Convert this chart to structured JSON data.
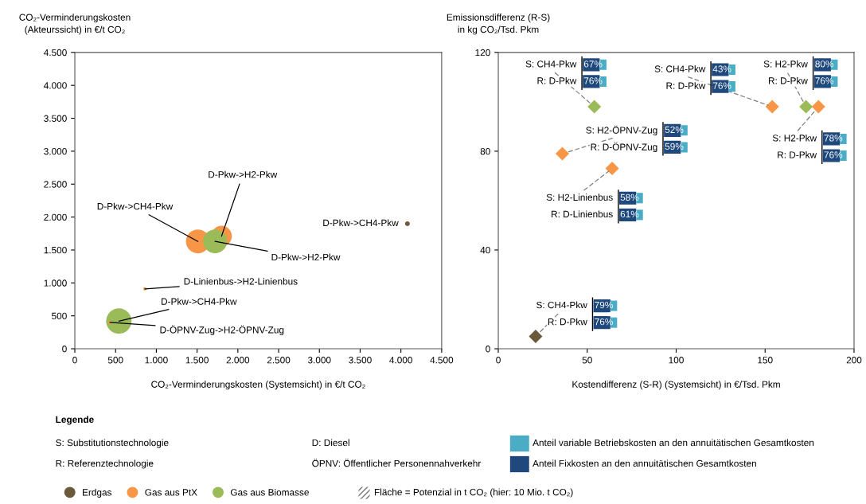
{
  "chart_data": [
    {
      "type": "bubble",
      "xlabel": "CO₂-Verminderungskosten (Systemsicht) in €/t CO₂",
      "ylabel": "CO₂-Verminderungskosten\n(Akteurssicht) in €/t CO₂",
      "x": [
        4080,
        1510,
        1800,
        1720,
        860,
        540,
        430
      ],
      "values": [
        1900,
        1630,
        1710,
        1630,
        910,
        420,
        400
      ],
      "sizes": [
        0.035,
        0.88,
        0.66,
        0.88,
        0.016,
        1,
        0.016
      ],
      "colors": [
        "#6b5a3a",
        "#f79646",
        "#f79646",
        "#9bbb59",
        "#f79646",
        "#9bbb59",
        "#f79646"
      ],
      "xlim": [
        0,
        4500
      ],
      "xticks": [
        0,
        500,
        {
          "value": 1000,
          "label": "1.000"
        },
        {
          "value": 1500,
          "label": "1.500"
        },
        {
          "value": 2000,
          "label": "2.000"
        },
        {
          "value": 2500,
          "label": "2.500"
        },
        {
          "value": 3000,
          "label": "3.000"
        },
        {
          "value": 3500,
          "label": "3.500"
        },
        {
          "value": 4000,
          "label": "4.000"
        },
        {
          "value": 4500,
          "label": "4.500"
        }
      ],
      "ylim": [
        0,
        4500
      ],
      "yticks": [
        0,
        500,
        {
          "value": 1000,
          "label": "1.000"
        },
        {
          "value": 1500,
          "label": "1.500"
        },
        {
          "value": 2000,
          "label": "2.000"
        },
        {
          "value": 2500,
          "label": "2.500"
        },
        {
          "value": 3000,
          "label": "3.000"
        },
        {
          "value": 3500,
          "label": "3.500"
        },
        {
          "value": 4000,
          "label": "4.000"
        },
        {
          "value": 4500,
          "label": "4.500"
        }
      ],
      "annotations": [
        {
          "text": "D-Pkw->CH4-Pkw",
          "x": 4080,
          "y": 1900
        },
        {
          "text": "D-Pkw->CH4-Pkw",
          "x": 1510,
          "y": 1630
        },
        {
          "text": "D-Pkw->H2-Pkw",
          "x": 1800,
          "y": 1710
        },
        {
          "text": "D-Pkw->H2-Pkw",
          "x": 1720,
          "y": 1630
        },
        {
          "text": "D-Linienbus->H2-Linienbus",
          "x": 860,
          "y": 910
        },
        {
          "text": "D-Pkw->CH4-Pkw",
          "x": 540,
          "y": 420
        },
        {
          "text": "D-ÖPNV-Zug->H2-ÖPNV-Zug",
          "x": 430,
          "y": 400
        },
        "Legende",
        "S: Substitutionstechnologie",
        "R: Referenztechnologie",
        "D: Diesel",
        "ÖPNV: Öffentlicher Personennahverkehr",
        "Anteil variable Betriebskosten an den annuitätischen Gesamtkosten",
        "Anteil Fixkosten an den annuitätischen Gesamtkosten",
        "Fläche = Potenzial in t CO₂ (hier: 10 Mio. t CO₂)"
      ]
    },
    {
      "type": "scatter",
      "xlabel": "Kostendifferenz (S-R) (Systemsicht) in €/Tsd. Pkm",
      "ylabel": "Emissionsdifferenz (R-S)\nin kg CO₂/Tsd. Pkm",
      "marker": "diamond",
      "legend": "bottom",
      "series": [
        {
          "name": "Erdgas",
          "color": "#6b5a3a",
          "x": [
            21
          ],
          "values": [
            5
          ]
        },
        {
          "name": "Gas aus PtX",
          "color": "#f79646",
          "x": [
            154,
            180,
            36,
            64
          ],
          "values": [
            98,
            98,
            79,
            73
          ]
        },
        {
          "name": "Gas aus Biomasse",
          "color": "#9bbb59",
          "x": [
            54,
            173
          ],
          "values": [
            98,
            98
          ]
        }
      ],
      "xlim": [
        0,
        200
      ],
      "xticks": [
        0,
        50,
        100,
        150,
        200
      ],
      "ylim": [
        0,
        120
      ],
      "yticks": [
        0,
        40,
        80,
        120
      ],
      "annotations": [
        {
          "text": "S: CH4-Pkw",
          "x": 54,
          "y": 98
        },
        "R: D-Pkw",
        "67%",
        "76%",
        {
          "text": "S: CH4-Pkw",
          "x": 154,
          "y": 98
        },
        "R: D-Pkw",
        "43%",
        "76%",
        {
          "text": "S: H2-Pkw",
          "x": 173,
          "y": 98
        },
        "R: D-Pkw",
        "80%",
        "76%",
        {
          "text": "S: H2-Pkw",
          "x": 180,
          "y": 98
        },
        "R: D-Pkw",
        "78%",
        "76%",
        {
          "text": "S: H2-ÖPNV-Zug",
          "x": 36,
          "y": 79
        },
        "R: D-ÖPNV-Zug",
        "52%",
        "59%",
        {
          "text": "S: H2-Linienbus",
          "x": 64,
          "y": 73
        },
        "R: D-Linienbus",
        "58%",
        "61%",
        {
          "text": "S: CH4-Pkw",
          "x": 21,
          "y": 5
        },
        "R: D-Pkw",
        "79%",
        "76%"
      ]
    }
  ]
}
